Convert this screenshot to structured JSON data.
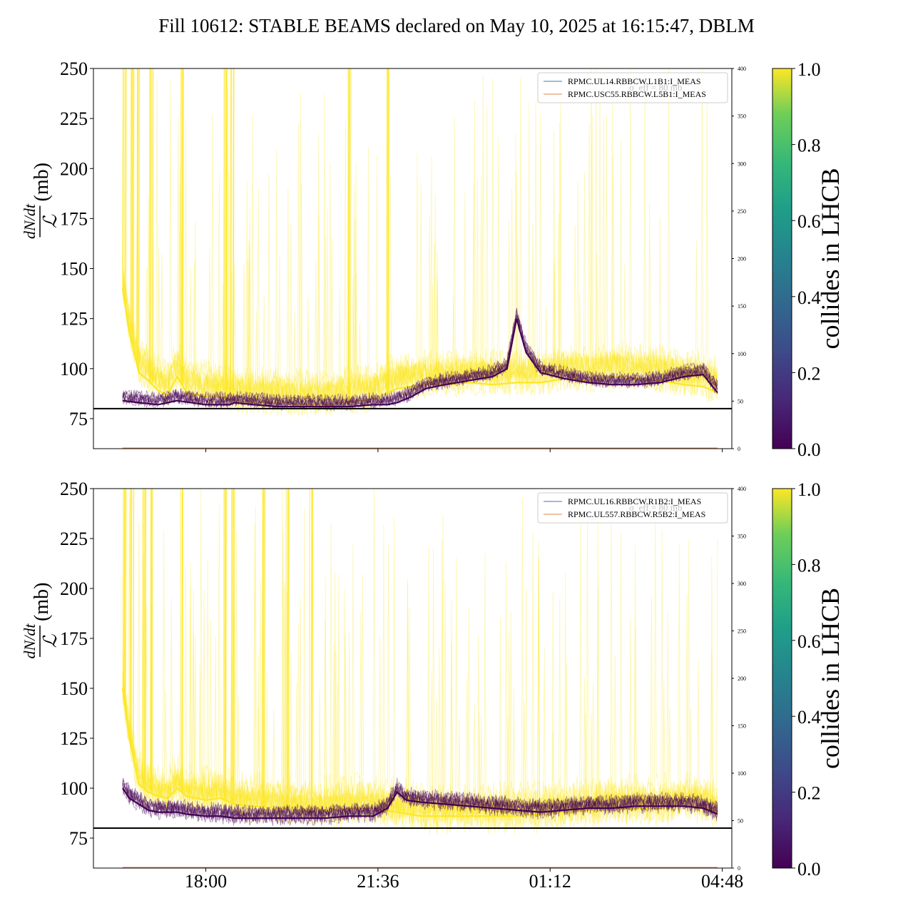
{
  "title": "Fill 10612: STABLE BEAMS declared on May 10, 2025 at 16:15:47, DBLM",
  "colors": {
    "collider": "#fde725",
    "noncollider": "#440154",
    "threshold_line": "#000000",
    "legend_line_1": "#4c72b0",
    "legend_line_2": "#dd8452"
  },
  "chart_data": [
    {
      "type": "line",
      "panel": "top",
      "ylabel_fraction_num": "dN/dt",
      "ylabel_fraction_den": "ℒ",
      "ylabel_unit": "(mb)",
      "ylim": [
        60,
        250
      ],
      "yticks": [
        75,
        100,
        125,
        150,
        175,
        200,
        225,
        250
      ],
      "secondary_ylim": [
        0,
        400
      ],
      "secondary_yticks": [
        0,
        50,
        100,
        150,
        200,
        250,
        300,
        350,
        400
      ],
      "threshold": 80,
      "threshold_label": "σ_eff = 80 mb",
      "xticks": [
        "18:00",
        "21:36",
        "01:12",
        "04:48"
      ],
      "xtick_hours": [
        18.0,
        21.6,
        25.2,
        28.8
      ],
      "xlim_hours": [
        15.65,
        29.0
      ],
      "data_range_hours": [
        16.26,
        28.7
      ],
      "legend": [
        "RPMC.UL14.RBBCW.L1B1:I_MEAS",
        "RPMC.USC55.RBBCW.L5B1:I_MEAS"
      ],
      "series": [
        {
          "name": "collides in LHCB = 1",
          "x": [
            16.26,
            16.4,
            16.6,
            16.8,
            17.0,
            17.2,
            17.4,
            17.6,
            18.0,
            18.3,
            18.6,
            19.0,
            19.5,
            20.0,
            20.5,
            21.0,
            21.5,
            21.8,
            22.0,
            22.3,
            22.6,
            23.0,
            23.5,
            24.0,
            24.5,
            25.0,
            25.5,
            26.0,
            26.5,
            27.0,
            27.5,
            28.0,
            28.4,
            28.7
          ],
          "y": [
            140,
            118,
            98,
            94,
            89,
            87,
            96,
            88,
            86,
            86,
            84,
            83,
            83,
            82,
            82,
            83,
            85,
            88,
            90,
            91,
            92,
            92,
            93,
            92,
            93,
            93,
            95,
            94,
            96,
            95,
            94,
            92,
            91,
            88
          ]
        },
        {
          "name": "collides in LHCB = 0",
          "x": [
            16.26,
            16.6,
            17.0,
            17.4,
            18.0,
            18.5,
            18.6,
            19.0,
            19.5,
            20.0,
            20.5,
            21.0,
            21.5,
            21.8,
            22.0,
            22.3,
            22.6,
            23.0,
            23.5,
            24.0,
            24.3,
            24.5,
            24.7,
            25.0,
            25.5,
            26.0,
            26.5,
            27.0,
            27.5,
            28.0,
            28.4,
            28.7
          ],
          "y": [
            84,
            83,
            82,
            84,
            82,
            82,
            83,
            82,
            81,
            81,
            81,
            81,
            82,
            82,
            83,
            86,
            90,
            92,
            94,
            96,
            100,
            125,
            108,
            98,
            95,
            93,
            92,
            92,
            93,
            96,
            97,
            88
          ]
        }
      ]
    },
    {
      "type": "line",
      "panel": "bottom",
      "ylabel_fraction_num": "dN/dt",
      "ylabel_fraction_den": "ℒ",
      "ylabel_unit": "(mb)",
      "ylim": [
        60,
        250
      ],
      "yticks": [
        75,
        100,
        125,
        150,
        175,
        200,
        225,
        250
      ],
      "secondary_ylim": [
        0,
        400
      ],
      "secondary_yticks": [
        0,
        50,
        100,
        150,
        200,
        250,
        300,
        350,
        400
      ],
      "threshold": 80,
      "threshold_label": "σ_eff = 80 mb",
      "xticks": [
        "18:00",
        "21:36",
        "01:12",
        "04:48"
      ],
      "xtick_hours": [
        18.0,
        21.6,
        25.2,
        28.8
      ],
      "xlim_hours": [
        15.65,
        29.0
      ],
      "data_range_hours": [
        16.26,
        28.7
      ],
      "legend": [
        "RPMC.UL16.RBBCW.R1B2:I_MEAS",
        "RPMC.UL557.RBBCW.R5B2:I_MEAS"
      ],
      "series": [
        {
          "name": "collides in LHCB = 1",
          "x": [
            16.26,
            16.4,
            16.6,
            16.8,
            17.0,
            17.2,
            17.4,
            17.6,
            18.0,
            18.3,
            18.6,
            19.0,
            19.5,
            20.0,
            20.5,
            21.0,
            21.5,
            22.0,
            22.5,
            23.0,
            23.5,
            24.0,
            24.5,
            25.0,
            25.5,
            26.0,
            26.5,
            27.0,
            27.5,
            28.0,
            28.4,
            28.7
          ],
          "y": [
            150,
            125,
            102,
            98,
            96,
            95,
            100,
            96,
            94,
            95,
            92,
            91,
            90,
            89,
            89,
            90,
            90,
            88,
            86,
            86,
            86,
            86,
            86,
            87,
            88,
            89,
            90,
            90,
            90,
            91,
            91,
            88
          ]
        },
        {
          "name": "collides in LHCB = 0",
          "x": [
            16.26,
            16.4,
            16.6,
            16.8,
            17.0,
            17.4,
            17.6,
            18.0,
            18.3,
            18.6,
            19.0,
            19.5,
            20.0,
            20.5,
            21.0,
            21.5,
            21.8,
            22.0,
            22.2,
            22.5,
            23.0,
            23.5,
            24.0,
            24.5,
            25.0,
            25.5,
            26.0,
            26.5,
            27.0,
            27.5,
            28.0,
            28.4,
            28.7
          ],
          "y": [
            100,
            95,
            92,
            89,
            88,
            88,
            87,
            86,
            86,
            85,
            85,
            85,
            85,
            85,
            86,
            86,
            90,
            98,
            94,
            93,
            92,
            91,
            90,
            89,
            88,
            89,
            90,
            90,
            91,
            91,
            91,
            90,
            87
          ]
        }
      ]
    }
  ],
  "colorbar": {
    "label": "collides in LHCB",
    "ticks": [
      "0.0",
      "0.2",
      "0.4",
      "0.6",
      "0.8",
      "1.0"
    ],
    "tick_values": [
      0.0,
      0.2,
      0.4,
      0.6,
      0.8,
      1.0
    ],
    "colormap": "viridis"
  }
}
